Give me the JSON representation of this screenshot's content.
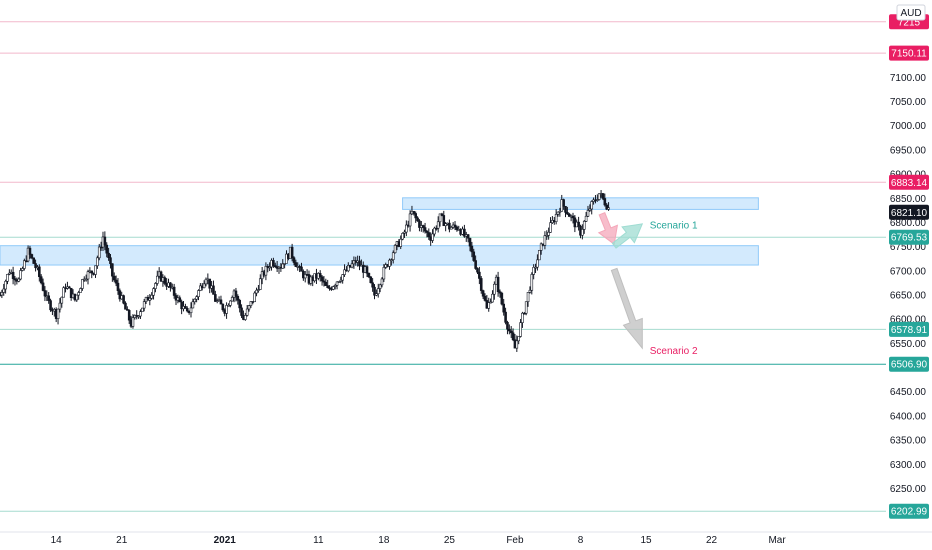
{
  "currency": "AUD",
  "chart_data": {
    "type": "candlestick",
    "currency": "AUD",
    "ylim": [
      6160,
      7260
    ],
    "y_ticks": [
      7100,
      7050,
      7000,
      6950,
      6900,
      6850,
      6800,
      6750,
      6700,
      6650,
      6600,
      6550,
      6500,
      6450,
      6400,
      6350,
      6300,
      6250
    ],
    "x_ticks": [
      {
        "label": "14",
        "day": 13,
        "bold": false
      },
      {
        "label": "21",
        "day": 20,
        "bold": false
      },
      {
        "label": "2021",
        "day": 31,
        "bold": true
      },
      {
        "label": "11",
        "day": 41,
        "bold": false
      },
      {
        "label": "18",
        "day": 48,
        "bold": false
      },
      {
        "label": "25",
        "day": 55,
        "bold": false
      },
      {
        "label": "Feb",
        "day": 62,
        "bold": false
      },
      {
        "label": "8",
        "day": 69,
        "bold": false
      },
      {
        "label": "15",
        "day": 76,
        "bold": false
      },
      {
        "label": "22",
        "day": 83,
        "bold": false
      },
      {
        "label": "Mar",
        "day": 90,
        "bold": false
      }
    ],
    "x_range_days": [
      7,
      98
    ],
    "last_price": "6821.10",
    "levels": [
      {
        "value": 7215,
        "label": "7215",
        "color": "#e91e63",
        "line": "#f2b8cb"
      },
      {
        "value": 7150.11,
        "label": "7150.11",
        "color": "#e91e63",
        "line": "#f2b8cb"
      },
      {
        "value": 6883.14,
        "label": "6883.14",
        "color": "#e91e63",
        "line": "#f2b8cb"
      },
      {
        "value": 6769.53,
        "label": "6769.53",
        "color": "#26a69a",
        "line": "#a6dccf"
      },
      {
        "value": 6578.91,
        "label": "6578.91",
        "color": "#26a69a",
        "line": "#a6dccf"
      },
      {
        "value": 6506.9,
        "label": "6506.90",
        "color": "#26a69a",
        "line": "#26a69a"
      },
      {
        "value": 6202.99,
        "label": "6202.99",
        "color": "#26a69a",
        "line": "#a6dccf"
      }
    ],
    "zones": [
      {
        "from_day": 7,
        "to_day": 88,
        "low": 6712,
        "high": 6752
      },
      {
        "from_day": 50,
        "to_day": 88,
        "low": 6827,
        "high": 6851
      }
    ],
    "path_points": [
      [
        7,
        6650
      ],
      [
        8,
        6700
      ],
      [
        9,
        6680
      ],
      [
        10,
        6740
      ],
      [
        11,
        6700
      ],
      [
        12,
        6640
      ],
      [
        13,
        6610
      ],
      [
        14,
        6670
      ],
      [
        15,
        6640
      ],
      [
        16,
        6690
      ],
      [
        17,
        6700
      ],
      [
        18,
        6770
      ],
      [
        19,
        6690
      ],
      [
        20,
        6640
      ],
      [
        21,
        6590
      ],
      [
        22,
        6620
      ],
      [
        23,
        6650
      ],
      [
        24,
        6690
      ],
      [
        25,
        6670
      ],
      [
        26,
        6640
      ],
      [
        27,
        6610
      ],
      [
        28,
        6650
      ],
      [
        29,
        6690
      ],
      [
        30,
        6640
      ],
      [
        31,
        6620
      ],
      [
        32,
        6660
      ],
      [
        33,
        6600
      ],
      [
        34,
        6640
      ],
      [
        35,
        6690
      ],
      [
        36,
        6720
      ],
      [
        37,
        6710
      ],
      [
        38,
        6740
      ],
      [
        39,
        6700
      ],
      [
        40,
        6680
      ],
      [
        41,
        6690
      ],
      [
        42,
        6660
      ],
      [
        43,
        6680
      ],
      [
        44,
        6700
      ],
      [
        45,
        6720
      ],
      [
        46,
        6700
      ],
      [
        47,
        6650
      ],
      [
        48,
        6700
      ],
      [
        49,
        6740
      ],
      [
        50,
        6770
      ],
      [
        51,
        6820
      ],
      [
        52,
        6790
      ],
      [
        53,
        6770
      ],
      [
        54,
        6810
      ],
      [
        55,
        6790
      ],
      [
        56,
        6790
      ],
      [
        57,
        6760
      ],
      [
        58,
        6700
      ],
      [
        59,
        6620
      ],
      [
        60,
        6680
      ],
      [
        61,
        6600
      ],
      [
        62,
        6540
      ],
      [
        63,
        6620
      ],
      [
        64,
        6700
      ],
      [
        65,
        6760
      ],
      [
        66,
        6800
      ],
      [
        67,
        6840
      ],
      [
        68,
        6810
      ],
      [
        69,
        6780
      ],
      [
        70,
        6830
      ],
      [
        71,
        6860
      ],
      [
        72,
        6830
      ]
    ],
    "annotations": [
      {
        "text": "Scenario 1",
        "day": 76.4,
        "value": 6788,
        "color": "#26a69a"
      },
      {
        "text": "Scenario 2",
        "day": 76.4,
        "value": 6528,
        "color": "#e91e63"
      }
    ],
    "arrows": [
      {
        "from": [
          71.3,
          6818
        ],
        "to": [
          72.6,
          6755
        ],
        "color": "#f4a7b9"
      },
      {
        "from": [
          72.6,
          6752
        ],
        "to": [
          75.6,
          6797
        ],
        "color": "#9fdcd2"
      },
      {
        "from": [
          72.6,
          6703
        ],
        "to": [
          75.6,
          6540
        ],
        "color": "#bfbfbf"
      }
    ]
  }
}
